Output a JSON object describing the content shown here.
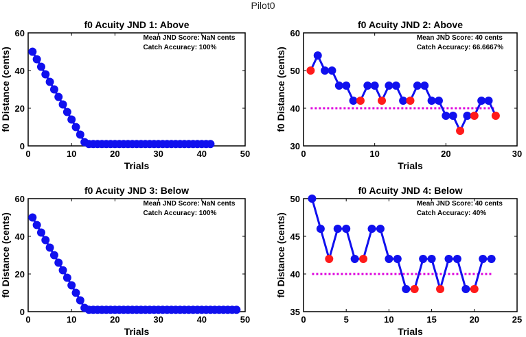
{
  "figure": {
    "title": "Pilot0"
  },
  "colors": {
    "line": "#1010ee",
    "marker": "#1010ee",
    "catch": "#ff1a1a",
    "threshold": "#dd00dd",
    "axis": "#000000"
  },
  "chart_data": [
    {
      "type": "line",
      "title": "f0 Acuity JND 1: Above",
      "xlabel": "Trials",
      "ylabel": "f0 Distance (cents)",
      "xlim": [
        0,
        50
      ],
      "ylim": [
        0,
        60
      ],
      "xticks": [
        0,
        10,
        20,
        30,
        40,
        50
      ],
      "yticks": [
        0,
        20,
        40,
        60
      ],
      "annotations": [
        "Mean JND Score: NaN cents",
        "Catch Accuracy: 100%"
      ],
      "series": [
        {
          "values": [
            50,
            46,
            42,
            38,
            34,
            30,
            26,
            22,
            18,
            14,
            10,
            6,
            2,
            1,
            1,
            1,
            1,
            1,
            1,
            1,
            1,
            1,
            1,
            1,
            1,
            1,
            1,
            1,
            1,
            1,
            1,
            1,
            1,
            1,
            1,
            1,
            1,
            1,
            1,
            1,
            1,
            1
          ]
        }
      ],
      "catch_points": []
    },
    {
      "type": "line",
      "title": "f0 Acuity JND 2: Above",
      "xlabel": "Trials",
      "ylabel": "f0 Distance (cents)",
      "xlim": [
        0,
        30
      ],
      "ylim": [
        30,
        60
      ],
      "xticks": [
        0,
        10,
        20,
        30
      ],
      "yticks": [
        30,
        40,
        50,
        60
      ],
      "annotations": [
        "Mean JND Score: 40 cents",
        "Catch Accuracy: 66.6667%"
      ],
      "threshold": {
        "value": 40,
        "x_range": [
          1,
          27
        ]
      },
      "series": [
        {
          "values": [
            50,
            54,
            50,
            50,
            46,
            46,
            42,
            42,
            46,
            46,
            42,
            46,
            46,
            42,
            42,
            46,
            46,
            42,
            42,
            38,
            38,
            34,
            38,
            38,
            42,
            42,
            38
          ]
        }
      ],
      "catch_points": [
        1,
        8,
        11,
        15,
        22,
        24,
        27
      ]
    },
    {
      "type": "line",
      "title": "f0 Acuity JND 3: Below",
      "xlabel": "Trials",
      "ylabel": "f0 Distance (cents)",
      "xlim": [
        0,
        50
      ],
      "ylim": [
        0,
        60
      ],
      "xticks": [
        0,
        10,
        20,
        30,
        40,
        50
      ],
      "yticks": [
        0,
        20,
        40,
        60
      ],
      "annotations": [
        "Mean JND Score: NaN cents",
        "Catch Accuracy: 100%"
      ],
      "series": [
        {
          "values": [
            50,
            46,
            42,
            38,
            34,
            30,
            26,
            22,
            18,
            14,
            10,
            6,
            2,
            1,
            1,
            1,
            1,
            1,
            1,
            1,
            1,
            1,
            1,
            1,
            1,
            1,
            1,
            1,
            1,
            1,
            1,
            1,
            1,
            1,
            1,
            1,
            1,
            1,
            1,
            1,
            1,
            1,
            1,
            1,
            1,
            1,
            1,
            1
          ]
        }
      ],
      "catch_points": []
    },
    {
      "type": "line",
      "title": "f0 Acuity JND 4: Below",
      "xlabel": "Trials",
      "ylabel": "f0 Distance (cents)",
      "xlim": [
        0,
        25
      ],
      "ylim": [
        35,
        50
      ],
      "xticks": [
        0,
        5,
        10,
        15,
        20,
        25
      ],
      "yticks": [
        35,
        40,
        45,
        50
      ],
      "annotations": [
        "Mean JND Score: 40 cents",
        "Catch Accuracy: 40%"
      ],
      "threshold": {
        "value": 40,
        "x_range": [
          1,
          22
        ]
      },
      "series": [
        {
          "values": [
            50,
            46,
            42,
            46,
            46,
            42,
            42,
            46,
            46,
            42,
            42,
            38,
            38,
            42,
            42,
            38,
            42,
            42,
            38,
            38,
            42,
            42
          ]
        }
      ],
      "catch_points": [
        3,
        7,
        13,
        16,
        20
      ]
    }
  ]
}
